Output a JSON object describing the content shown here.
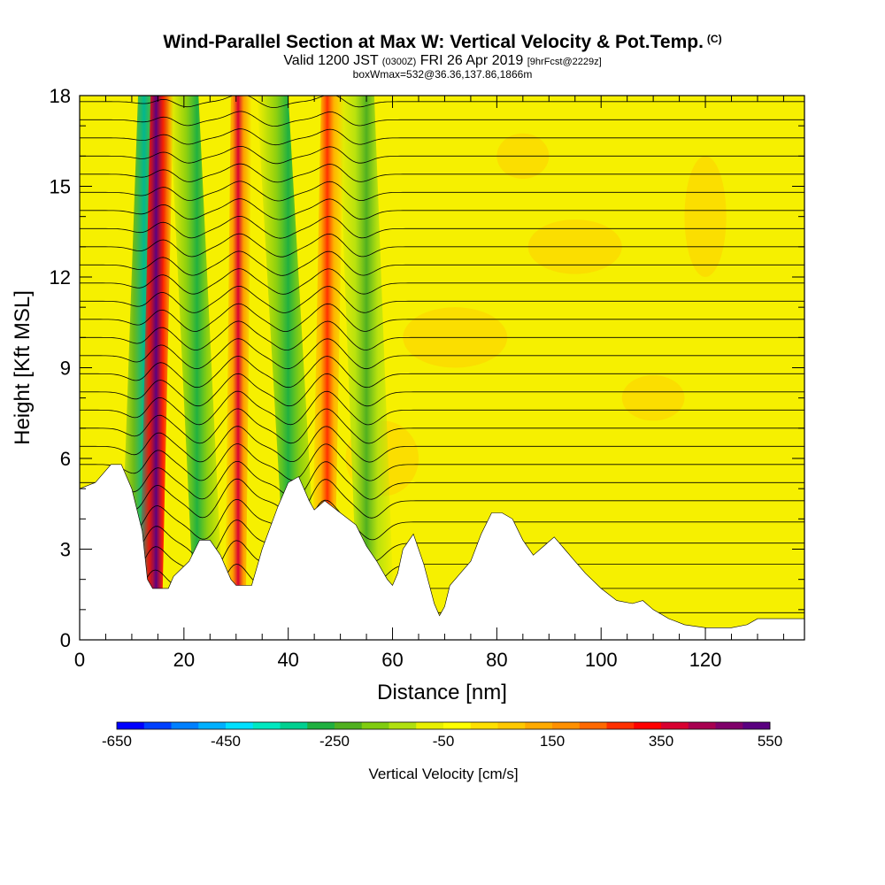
{
  "chart_data": {
    "type": "heatmap",
    "title": "Wind-Parallel Section at Max W: Vertical Velocity & Pot.Temp.",
    "title_mark": "(C)",
    "subtitle_prefix": "Valid 1200 JST",
    "subtitle_utc": "(0300Z)",
    "subtitle_date": "FRI 26 Apr 2019",
    "subtitle_fcst": "[9hrFcst@2229z]",
    "subtitle2": "boxWmax=532@36.36,137.86,1866m",
    "xlabel": "Distance [nm]",
    "ylabel": "Height [Kft MSL]",
    "xlim": [
      0,
      139
    ],
    "ylim": [
      0,
      18
    ],
    "x_ticks": [
      "0",
      "20",
      "40",
      "60",
      "80",
      "100",
      "120"
    ],
    "y_ticks": [
      "0",
      "3",
      "6",
      "9",
      "12",
      "15",
      "18"
    ],
    "colorbar": {
      "title": "Vertical Velocity [cm/s]",
      "tick_labels": [
        "-650",
        "-450",
        "-250",
        "-50",
        "150",
        "350",
        "550"
      ],
      "colors": [
        "#0000ff",
        "#0040ff",
        "#0080ff",
        "#00b0ff",
        "#00e0ff",
        "#00e8c0",
        "#00d090",
        "#20b040",
        "#50b020",
        "#80cc10",
        "#b0e010",
        "#e8f000",
        "#ffff00",
        "#ffe000",
        "#ffc800",
        "#ffaa00",
        "#ff9000",
        "#ff6800",
        "#ff3000",
        "#ff0000",
        "#d80030",
        "#a80050",
        "#80006a",
        "#5a0080"
      ]
    },
    "terrain_kft": [
      [
        0,
        5.0
      ],
      [
        3,
        5.2
      ],
      [
        6,
        5.8
      ],
      [
        8,
        5.8
      ],
      [
        10,
        5.0
      ],
      [
        12,
        3.6
      ],
      [
        13,
        2.0
      ],
      [
        14,
        1.7
      ],
      [
        17,
        1.7
      ],
      [
        18,
        2.1
      ],
      [
        21,
        2.6
      ],
      [
        23,
        3.3
      ],
      [
        25,
        3.3
      ],
      [
        27,
        2.8
      ],
      [
        29,
        2.0
      ],
      [
        30,
        1.8
      ],
      [
        33,
        1.8
      ],
      [
        35,
        3.0
      ],
      [
        38,
        4.4
      ],
      [
        40,
        5.2
      ],
      [
        42,
        5.4
      ],
      [
        44,
        4.6
      ],
      [
        45,
        4.3
      ],
      [
        47,
        4.6
      ],
      [
        50,
        4.2
      ],
      [
        53,
        3.8
      ],
      [
        55,
        3.1
      ],
      [
        57,
        2.6
      ],
      [
        59,
        2.0
      ],
      [
        60,
        1.8
      ],
      [
        61,
        2.2
      ],
      [
        62,
        3.0
      ],
      [
        64,
        3.5
      ],
      [
        66,
        2.5
      ],
      [
        68,
        1.2
      ],
      [
        69,
        0.8
      ],
      [
        70,
        1.1
      ],
      [
        71,
        1.8
      ],
      [
        73,
        2.2
      ],
      [
        75,
        2.6
      ],
      [
        77,
        3.5
      ],
      [
        79,
        4.2
      ],
      [
        81,
        4.2
      ],
      [
        83,
        4.0
      ],
      [
        85,
        3.3
      ],
      [
        87,
        2.8
      ],
      [
        89,
        3.1
      ],
      [
        91,
        3.4
      ],
      [
        93,
        3.0
      ],
      [
        95,
        2.6
      ],
      [
        97,
        2.2
      ],
      [
        100,
        1.7
      ],
      [
        103,
        1.3
      ],
      [
        106,
        1.2
      ],
      [
        108,
        1.3
      ],
      [
        110,
        1.0
      ],
      [
        113,
        0.7
      ],
      [
        116,
        0.5
      ],
      [
        120,
        0.4
      ],
      [
        125,
        0.4
      ],
      [
        128,
        0.5
      ],
      [
        130,
        0.7
      ],
      [
        135,
        0.7
      ],
      [
        139,
        0.7
      ]
    ],
    "waves": [
      {
        "kind": "down",
        "x_bottom": 10.5,
        "x_top": 14.2,
        "half_width": 3.0,
        "core": "#00b890",
        "edge": "#50b020"
      },
      {
        "kind": "up",
        "x_bottom": 13.5,
        "x_top": 15.8,
        "half_width": 2.2,
        "core": "#5a0080",
        "edge": "#ff0000"
      },
      {
        "kind": "down",
        "x_bottom": 25.0,
        "x_top": 20.0,
        "half_width": 2.8,
        "core": "#20b040",
        "edge": "#80cc10"
      },
      {
        "kind": "up",
        "x_bottom": 29.8,
        "x_top": 31.0,
        "half_width": 2.0,
        "core": "#d80030",
        "edge": "#ff9000"
      },
      {
        "kind": "down",
        "x_bottom": 43.0,
        "x_top": 37.0,
        "half_width": 3.0,
        "core": "#20b040",
        "edge": "#80cc10"
      },
      {
        "kind": "up",
        "x_bottom": 46.5,
        "x_top": 48.5,
        "half_width": 2.2,
        "core": "#ff3000",
        "edge": "#ffaa00"
      },
      {
        "kind": "down",
        "x_bottom": 57.0,
        "x_top": 53.0,
        "half_width": 3.5,
        "core": "#50b020",
        "edge": "#b0e010"
      }
    ],
    "theta_levels_kft": [
      0.9,
      1.7,
      2.5,
      3.2,
      3.9,
      4.6,
      5.2,
      5.8,
      6.4,
      7.0,
      7.6,
      8.2,
      8.8,
      9.4,
      10.0,
      10.6,
      11.2,
      11.8,
      12.4,
      13.0,
      13.6,
      14.2,
      14.8,
      15.4,
      16.0,
      16.6,
      17.2,
      17.8
    ]
  }
}
